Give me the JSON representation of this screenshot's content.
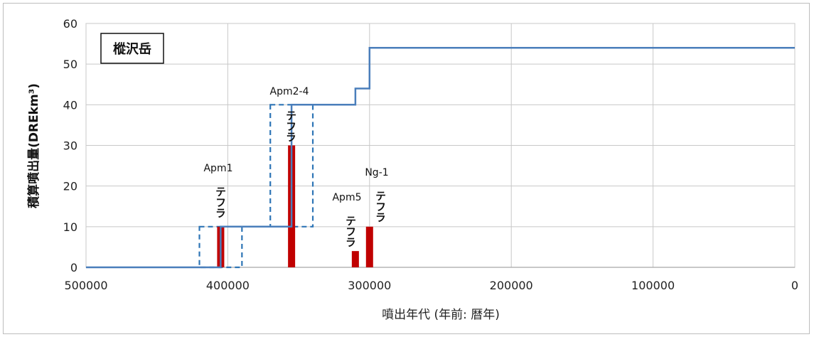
{
  "chart_data": {
    "type": "bar+line",
    "box_label": "樅沢岳",
    "xlabel": "噴出年代 (年前: 暦年)",
    "ylabel": "積算噴出量(DREkm³)",
    "xlim": [
      500000,
      0
    ],
    "ylim": [
      0,
      60
    ],
    "x_reversed": true,
    "x_ticks": [
      "500000",
      "400000",
      "300000",
      "200000",
      "100000",
      "0"
    ],
    "x_tick_values": [
      500000,
      400000,
      300000,
      200000,
      100000,
      0
    ],
    "y_ticks": [
      "0",
      "10",
      "20",
      "30",
      "40",
      "50",
      "60"
    ],
    "y_tick_values": [
      0,
      10,
      20,
      30,
      40,
      50,
      60
    ],
    "grid": true,
    "cumulative_series": {
      "color": "#4a7ebb",
      "points": [
        [
          500000,
          0
        ],
        [
          405000,
          0
        ],
        [
          405000,
          10
        ],
        [
          355000,
          10
        ],
        [
          355000,
          40
        ],
        [
          310000,
          40
        ],
        [
          310000,
          44
        ],
        [
          300000,
          44
        ],
        [
          300000,
          54
        ],
        [
          0,
          54
        ]
      ]
    },
    "bar_color": "#c00000",
    "bars": [
      {
        "x": 405000,
        "value": 10
      },
      {
        "x": 355000,
        "value": 30
      },
      {
        "x": 310000,
        "value": 4
      },
      {
        "x": 300000,
        "value": 10
      }
    ],
    "dashed_boxes": [
      {
        "x_range": [
          420000,
          390000
        ],
        "y_range": [
          0,
          10
        ]
      },
      {
        "x_range": [
          370000,
          340000
        ],
        "y_range": [
          10,
          40
        ]
      }
    ],
    "annotations": [
      {
        "code": "Apm1",
        "word": "テフラ"
      },
      {
        "code": "Apm2-4",
        "word": "テフラ"
      },
      {
        "code": "Apm5",
        "word": "テフラ"
      },
      {
        "code": "Ng-1",
        "word": "テフラ"
      }
    ]
  }
}
